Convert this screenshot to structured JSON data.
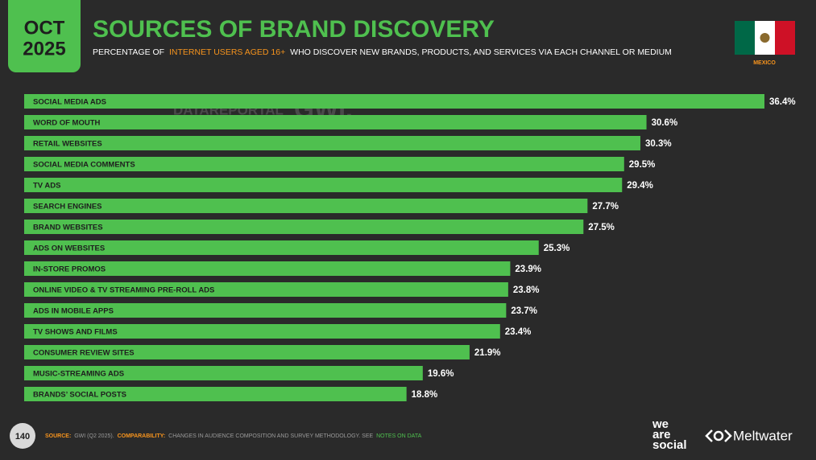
{
  "badge": {
    "month": "OCT",
    "year": "2025"
  },
  "chart_data": {
    "type": "bar",
    "orientation": "horizontal",
    "title": "SOURCES OF BRAND DISCOVERY",
    "subtitle": [
      "PERCENTAGE OF",
      "INTERNET USERS AGED 16+",
      "WHO DISCOVER NEW BRANDS, PRODUCTS, AND SERVICES VIA EACH CHANNEL OR MEDIUM"
    ],
    "categories": [
      "SOCIAL MEDIA ADS",
      "WORD OF MOUTH",
      "RETAIL WEBSITES",
      "SOCIAL MEDIA COMMENTS",
      "TV ADS",
      "SEARCH ENGINES",
      "BRAND WEBSITES",
      "ADS ON WEBSITES",
      "IN-STORE PROMOS",
      "ONLINE VIDEO & TV STREAMING PRE-ROLL ADS",
      "ADS IN MOBILE APPS",
      "TV SHOWS AND FILMS",
      "CONSUMER REVIEW SITES",
      "MUSIC-STREAMING ADS",
      "BRANDS’ SOCIAL POSTS"
    ],
    "values": [
      36.4,
      30.6,
      30.3,
      29.5,
      29.4,
      27.7,
      27.5,
      25.3,
      23.9,
      23.8,
      23.7,
      23.4,
      21.9,
      19.6,
      18.8
    ],
    "value_labels": [
      "36.4%",
      "30.6%",
      "30.3%",
      "29.5%",
      "29.4%",
      "27.7%",
      "27.5%",
      "25.3%",
      "23.9%",
      "23.8%",
      "23.7%",
      "23.4%",
      "21.9%",
      "19.6%",
      "18.8%"
    ],
    "color": "#4fc04f"
  },
  "country": "MEXICO",
  "watermark": [
    "DATAREPORTAL",
    "GWI."
  ],
  "page_number": "140",
  "source": [
    "SOURCE:",
    "GWI (Q2 2025).",
    "COMPARABILITY:",
    "CHANGES IN AUDIENCE COMPOSITION AND SURVEY METHODOLOGY. SEE",
    "NOTES ON DATA"
  ],
  "logos": {
    "we_are_social": [
      "we",
      "are",
      "social"
    ],
    "meltwater": "Meltwater"
  }
}
